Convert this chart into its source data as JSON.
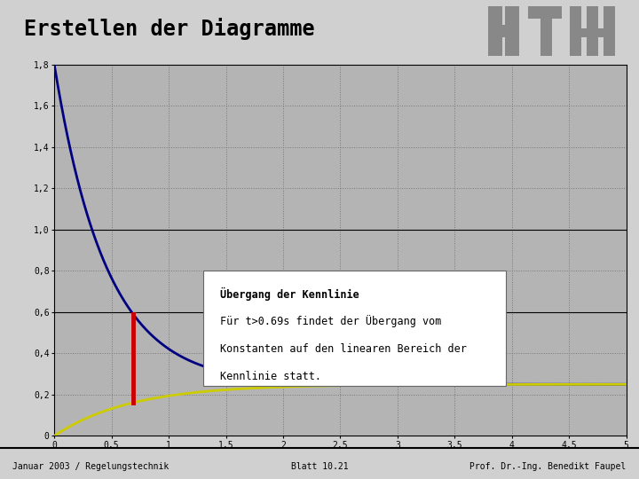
{
  "title": "Erstellen der Diagramme",
  "background_color": "#d0d0d0",
  "plot_bg_color": "#b4b4b4",
  "xmin": 0,
  "xmax": 5,
  "ymin": 0,
  "ymax": 1.8,
  "yticks": [
    0,
    0.2,
    0.4,
    0.6,
    0.8,
    1.0,
    1.2,
    1.4,
    1.6,
    1.8
  ],
  "ytick_labels": [
    "0",
    "0,2",
    "0,4",
    "0,6",
    "0,8",
    "1,0",
    "1,2",
    "1,4",
    "1,6",
    "1,8"
  ],
  "xticks": [
    0,
    0.5,
    1,
    1.5,
    2,
    2.5,
    3,
    3.5,
    4,
    4.5,
    5
  ],
  "xtick_labels": [
    "0",
    "0,5",
    "1",
    "1,5",
    "2",
    "2,5",
    "3",
    "3,5",
    "4",
    "4,5",
    "5"
  ],
  "transition_t": 0.69,
  "blue_color": "#000080",
  "yellow_color": "#cccc00",
  "red_color": "#cc0000",
  "annotation_title": "Übergang der Kennlinie",
  "annotation_line1": "Für t>0.69s findet der Übergang vom",
  "annotation_line2": "Konstanten auf den linearen Bereich der",
  "annotation_line3": "Kennlinie statt.",
  "footer_left": "Januar 2003 / Regelungstechnik",
  "footer_center": "Blatt 10.21",
  "footer_right": "Prof. Dr.-Ing. Benedikt Faupel"
}
